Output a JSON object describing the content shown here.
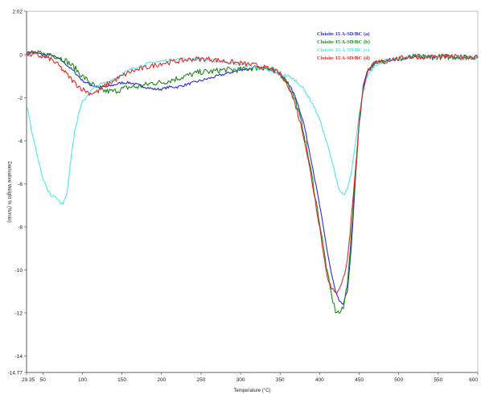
{
  "chart_data": {
    "type": "line",
    "title": "",
    "xlabel": "Temperature (°C)",
    "ylabel": "Derivative Weight % (%/min)",
    "xlim": [
      29.35,
      600
    ],
    "ylim": [
      -14.77,
      2.02
    ],
    "x_ticks": [
      29.35,
      50,
      100,
      150,
      200,
      250,
      300,
      350,
      400,
      450,
      500,
      550,
      600
    ],
    "x_tick_labels": [
      "29.35",
      "50",
      "100",
      "150",
      "200",
      "250",
      "300",
      "350",
      "400",
      "450",
      "500",
      "550",
      "600"
    ],
    "y_ticks": [
      2.02,
      0,
      -2,
      -4,
      -6,
      -8,
      -10,
      -12,
      -14,
      -14.77
    ],
    "y_tick_labels": [
      "2.02",
      "0",
      "-2",
      "-4",
      "-6",
      "-8",
      "-10",
      "-12",
      "-14",
      "-14.77"
    ],
    "grid": false,
    "legend_position": "top-right",
    "series": [
      {
        "name": "Cloisite 15 A-SD/BC (a)",
        "color": "#2a2ad6",
        "x": [
          30,
          40,
          50,
          60,
          75,
          90,
          100,
          110,
          120,
          130,
          140,
          150,
          160,
          170,
          180,
          190,
          200,
          210,
          220,
          230,
          240,
          250,
          260,
          270,
          280,
          290,
          300,
          310,
          320,
          330,
          340,
          350,
          360,
          370,
          380,
          390,
          400,
          410,
          415,
          420,
          425,
          430,
          435,
          440,
          445,
          450,
          455,
          460,
          470,
          480,
          490,
          500,
          510,
          520,
          530,
          540,
          550,
          560,
          570,
          580,
          590,
          600
        ],
        "y": [
          0.1,
          0.1,
          0.0,
          0.0,
          -0.3,
          -0.8,
          -1.2,
          -1.4,
          -1.5,
          -1.5,
          -1.4,
          -1.3,
          -1.3,
          -1.4,
          -1.5,
          -1.6,
          -1.6,
          -1.5,
          -1.5,
          -1.4,
          -1.3,
          -1.2,
          -1.1,
          -1.0,
          -0.9,
          -0.8,
          -0.7,
          -0.65,
          -0.6,
          -0.6,
          -0.7,
          -0.9,
          -1.3,
          -2.0,
          -3.2,
          -5.0,
          -7.0,
          -9.2,
          -10.2,
          -11.0,
          -11.5,
          -11.6,
          -11.0,
          -9.0,
          -6.0,
          -3.0,
          -1.5,
          -0.8,
          -0.4,
          -0.3,
          -0.2,
          -0.2,
          -0.15,
          -0.1,
          -0.1,
          -0.1,
          -0.1,
          -0.1,
          -0.1,
          -0.1,
          -0.1,
          -0.1
        ]
      },
      {
        "name": "Cloisite 15 A-SD/BC (b)",
        "color": "#1a8a1a",
        "x": [
          30,
          40,
          50,
          60,
          70,
          80,
          90,
          100,
          110,
          120,
          130,
          140,
          150,
          160,
          170,
          180,
          190,
          200,
          210,
          220,
          230,
          240,
          250,
          260,
          270,
          280,
          290,
          300,
          310,
          320,
          330,
          340,
          350,
          360,
          370,
          380,
          390,
          400,
          405,
          410,
          415,
          420,
          425,
          430,
          435,
          440,
          445,
          450,
          455,
          460,
          470,
          480,
          490,
          500,
          510,
          520,
          530,
          540,
          550,
          560,
          570,
          580,
          590,
          600
        ],
        "y": [
          0.1,
          0.1,
          0.0,
          0.0,
          -0.1,
          -0.3,
          -0.6,
          -1.0,
          -1.3,
          -1.6,
          -1.7,
          -1.7,
          -1.6,
          -1.5,
          -1.5,
          -1.4,
          -1.3,
          -1.3,
          -1.2,
          -1.1,
          -1.0,
          -0.9,
          -0.8,
          -0.8,
          -0.75,
          -0.7,
          -0.7,
          -0.7,
          -0.65,
          -0.6,
          -0.6,
          -0.7,
          -0.9,
          -1.3,
          -2.2,
          -3.6,
          -5.6,
          -7.8,
          -9.0,
          -10.2,
          -11.2,
          -11.9,
          -12.0,
          -11.8,
          -10.6,
          -8.4,
          -5.8,
          -3.2,
          -1.6,
          -0.8,
          -0.4,
          -0.3,
          -0.2,
          -0.2,
          -0.15,
          -0.1,
          -0.1,
          -0.1,
          -0.1,
          -0.1,
          -0.1,
          -0.1,
          -0.1,
          -0.1
        ]
      },
      {
        "name": "Cloisite 15 A-SD/BC (c)",
        "color": "#4de8e8",
        "x": [
          30,
          35,
          40,
          45,
          50,
          55,
          60,
          65,
          70,
          75,
          80,
          85,
          90,
          95,
          100,
          110,
          120,
          130,
          140,
          150,
          160,
          170,
          180,
          190,
          200,
          210,
          220,
          230,
          240,
          250,
          260,
          270,
          280,
          290,
          300,
          310,
          320,
          330,
          340,
          350,
          360,
          370,
          380,
          390,
          400,
          410,
          420,
          425,
          430,
          435,
          440,
          445,
          450,
          455,
          460,
          470,
          480,
          490,
          500,
          510,
          520,
          530,
          540,
          550,
          560,
          570,
          580,
          590,
          600
        ],
        "y": [
          -2.4,
          -3.4,
          -4.2,
          -5.0,
          -5.7,
          -6.2,
          -6.5,
          -6.6,
          -6.8,
          -6.9,
          -6.5,
          -5.0,
          -3.6,
          -2.8,
          -2.2,
          -1.7,
          -1.4,
          -1.3,
          -1.1,
          -0.9,
          -0.7,
          -0.55,
          -0.45,
          -0.35,
          -0.3,
          -0.25,
          -0.2,
          -0.2,
          -0.2,
          -0.2,
          -0.25,
          -0.3,
          -0.35,
          -0.4,
          -0.45,
          -0.5,
          -0.6,
          -0.7,
          -0.8,
          -0.9,
          -1.0,
          -1.2,
          -1.6,
          -2.2,
          -3.0,
          -4.2,
          -5.6,
          -6.3,
          -6.5,
          -6.3,
          -5.5,
          -4.2,
          -2.8,
          -1.7,
          -1.0,
          -0.5,
          -0.3,
          -0.2,
          -0.2,
          -0.15,
          -0.1,
          -0.1,
          -0.1,
          -0.1,
          -0.1,
          -0.1,
          -0.1,
          -0.1,
          -0.1
        ]
      },
      {
        "name": "Cloisite 15 A-SD/BC (d)",
        "color": "#e02a2a",
        "x": [
          30,
          40,
          50,
          60,
          70,
          80,
          90,
          100,
          110,
          120,
          130,
          140,
          150,
          160,
          170,
          180,
          190,
          200,
          210,
          220,
          230,
          240,
          250,
          260,
          270,
          280,
          290,
          300,
          310,
          320,
          330,
          340,
          350,
          360,
          370,
          380,
          390,
          400,
          405,
          410,
          415,
          420,
          425,
          430,
          435,
          440,
          445,
          450,
          455,
          460,
          470,
          480,
          490,
          500,
          510,
          520,
          530,
          540,
          550,
          560,
          570,
          580,
          590,
          600
        ],
        "y": [
          0.0,
          0.0,
          -0.1,
          -0.2,
          -0.5,
          -0.9,
          -1.3,
          -1.6,
          -1.8,
          -1.7,
          -1.4,
          -1.2,
          -1.0,
          -0.8,
          -0.7,
          -0.6,
          -0.5,
          -0.4,
          -0.35,
          -0.3,
          -0.25,
          -0.2,
          -0.2,
          -0.2,
          -0.25,
          -0.3,
          -0.35,
          -0.4,
          -0.45,
          -0.5,
          -0.6,
          -0.7,
          -0.9,
          -1.4,
          -2.4,
          -3.8,
          -5.8,
          -8.0,
          -9.3,
          -10.3,
          -10.9,
          -11.1,
          -10.8,
          -10.4,
          -9.6,
          -7.6,
          -5.4,
          -3.2,
          -1.6,
          -0.8,
          -0.4,
          -0.3,
          -0.2,
          -0.2,
          -0.1,
          -0.1,
          -0.1,
          -0.1,
          -0.1,
          -0.1,
          -0.1,
          -0.1,
          -0.1,
          -0.1
        ]
      }
    ]
  }
}
